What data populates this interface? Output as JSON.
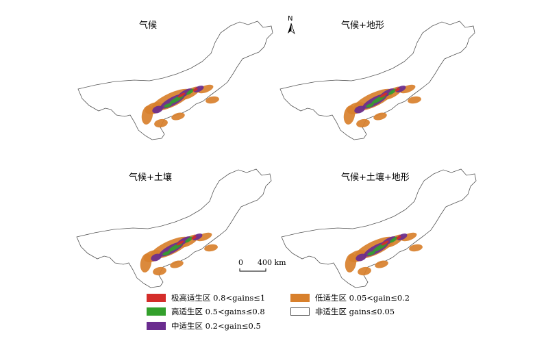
{
  "panels": [
    {
      "title": "气候"
    },
    {
      "title": "气候+地形"
    },
    {
      "title": "气候+土壤"
    },
    {
      "title": "气候+土壤+地形"
    }
  ],
  "north_arrow": {
    "label": "N"
  },
  "scale_bar": {
    "zero": "0",
    "max": "400 km"
  },
  "legend": [
    {
      "label": "极高适生区 0.8<gains≤1",
      "color": "#d42d2a"
    },
    {
      "label": "高适生区 0.5<gains≤0.8",
      "color": "#33a02c"
    },
    {
      "label": "中适生区 0.2<gain≤0.5",
      "color": "#6a2c8f"
    },
    {
      "label": "低适生区 0.05<gain≤0.2",
      "color": "#d8802c"
    },
    {
      "label": "非适生区 gains≤0.05",
      "color": "#ffffff"
    }
  ]
}
